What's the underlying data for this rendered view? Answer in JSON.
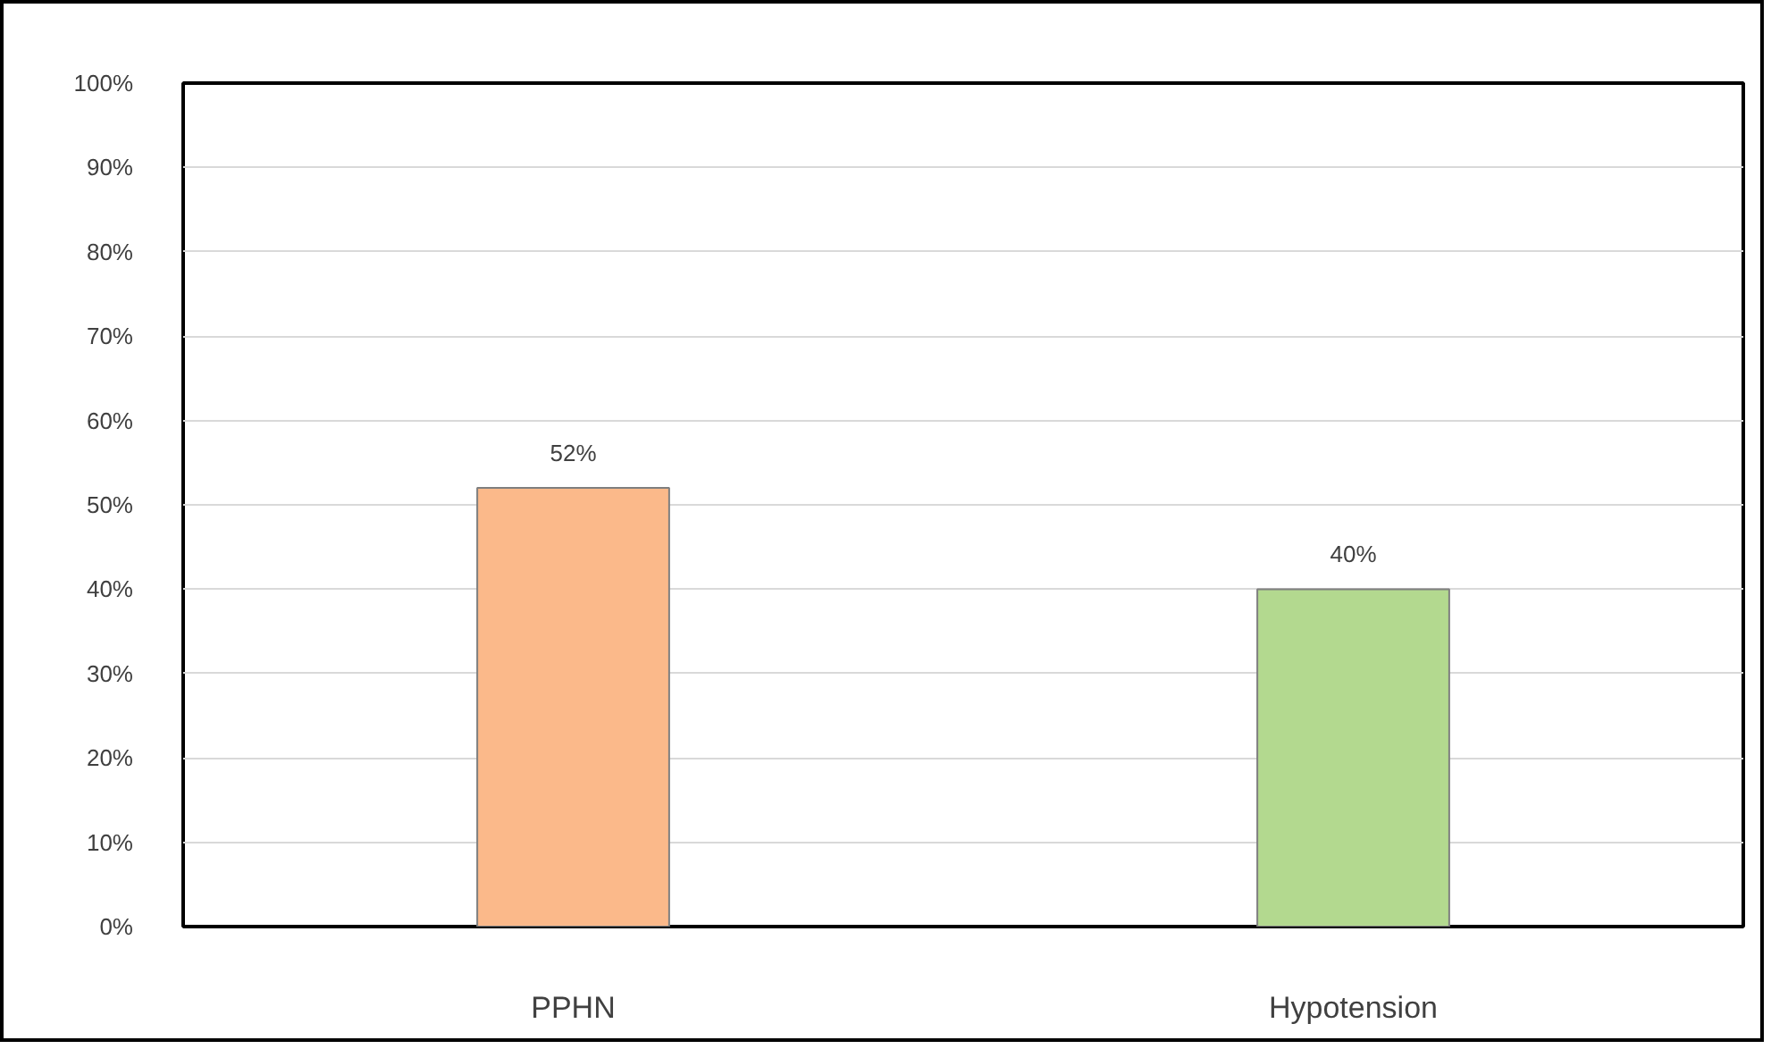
{
  "chart_data": {
    "type": "bar",
    "categories": [
      "PPHN",
      "Hypotension"
    ],
    "values": [
      52,
      40
    ],
    "colors": [
      "#fbb98a",
      "#b3d98f"
    ],
    "value_labels": [
      "52%",
      "40%"
    ],
    "ylim": [
      0,
      100
    ],
    "yticks": [
      {
        "value": 0,
        "label": "0%"
      },
      {
        "value": 10,
        "label": "10%"
      },
      {
        "value": 20,
        "label": "20%"
      },
      {
        "value": 30,
        "label": "30%"
      },
      {
        "value": 40,
        "label": "40%"
      },
      {
        "value": 50,
        "label": "50%"
      },
      {
        "value": 60,
        "label": "60%"
      },
      {
        "value": 70,
        "label": "70%"
      },
      {
        "value": 80,
        "label": "80%"
      },
      {
        "value": 90,
        "label": "90%"
      },
      {
        "value": 100,
        "label": "100%"
      }
    ],
    "grid": "y"
  }
}
